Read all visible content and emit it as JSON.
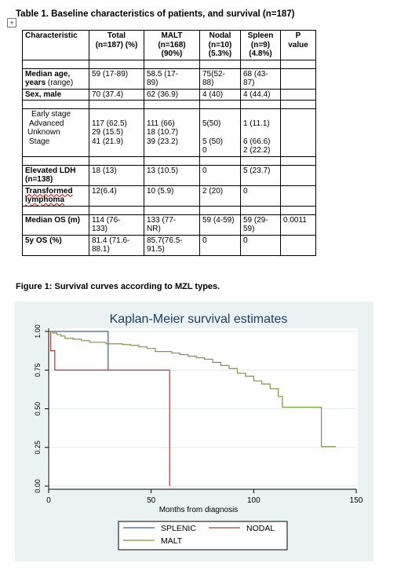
{
  "table": {
    "expand_glyph": "+",
    "title": "Table 1. Baseline characteristics of patients, and survival (n=187)",
    "header": {
      "characteristic": "Characteristic",
      "total": [
        "Total",
        "(n=187) (%)"
      ],
      "malt": [
        "MALT",
        "(n=168)",
        "(90%)"
      ],
      "nodal": [
        "Nodal",
        "(n=10)",
        "(5.3%)"
      ],
      "spleen": [
        "Spleen",
        "(n=9)",
        "(4.8%)"
      ],
      "p": [
        "P",
        "value"
      ]
    },
    "age": {
      "label1": "Median age,",
      "label2": "years",
      "label3": "(range)",
      "total": "59 (17-89)",
      "malt": [
        "58.5 (17-",
        "89)"
      ],
      "nodal": [
        "75(52-",
        "88)"
      ],
      "spleen": [
        "68 (43-",
        "87)"
      ]
    },
    "sex": {
      "label": "Sex, male",
      "total": "70 (37.4)",
      "malt": "62 (36.9)",
      "nodal": "4 (40)",
      "spleen": "4 (44.4)"
    },
    "stage": {
      "label": [
        "Early stage",
        "Advanced",
        "Unknown",
        "Stage"
      ],
      "total": [
        "117 (62.5)",
        "29 (15.5)",
        "41 (21.9)"
      ],
      "malt": [
        "111 (66)",
        "18 (10.7)",
        "39 (23.2)"
      ],
      "nodal": [
        "5(50)",
        "5 (50)",
        "0"
      ],
      "spleen": [
        "1 (11.1)",
        "6 (66.6)",
        "2 (22.2)"
      ]
    },
    "ldh": {
      "label": [
        "Elevated LDH",
        "(n=138)"
      ],
      "total": "18 (13)",
      "malt": "13 (10.5)",
      "nodal": "0",
      "spleen": "5 (23.7)"
    },
    "transformed": {
      "label": [
        "Transformed",
        "lymphoma"
      ],
      "total": "12(6.4)",
      "malt": "10 (5.9)",
      "nodal": "2 (20)",
      "spleen": "0"
    },
    "median_os": {
      "label": "Median OS (m)",
      "total": [
        "114 (76-",
        "133)"
      ],
      "malt": [
        "133 (77-",
        "NR)"
      ],
      "nodal": "59 (4-59)",
      "spleen": [
        "59 (29-",
        "59)"
      ],
      "p": "0.0011"
    },
    "os5": {
      "label": "5y OS (%)",
      "total": [
        "81.4 (71.6-",
        "88.1)"
      ],
      "malt": [
        "85.7(76.5-",
        "91.5)"
      ],
      "nodal": "0",
      "spleen": "0"
    }
  },
  "figure_title": "Figure 1: Survival curves according to MZL types.",
  "chart_data": {
    "type": "line",
    "title": "Kaplan-Meier survival estimates",
    "xlabel": "Months from diagnosis",
    "ylabel": "",
    "xlim": [
      0,
      150
    ],
    "ylim": [
      0,
      1
    ],
    "xticks": [
      0,
      50,
      100,
      150
    ],
    "yticks": [
      "0.00",
      "0.25",
      "0.50",
      "0.75",
      "1.00"
    ],
    "grid": "horizontal",
    "legend_position": "bottom",
    "series": [
      {
        "name": "SPLENIC",
        "color": "#3a5f9f",
        "step": true,
        "x": [
          0,
          29,
          29
        ],
        "y": [
          1.0,
          1.0,
          0.75
        ]
      },
      {
        "name": "NODAL",
        "color": "#b03a3a",
        "step": true,
        "x": [
          0,
          1,
          1,
          3,
          3,
          59,
          59
        ],
        "y": [
          1.0,
          1.0,
          0.875,
          0.875,
          0.75,
          0.75,
          0.0
        ]
      },
      {
        "name": "MALT",
        "color": "#7a9a3a",
        "step": true,
        "x": [
          0,
          2,
          4,
          6,
          8,
          12,
          16,
          20,
          24,
          28,
          32,
          36,
          40,
          44,
          48,
          52,
          56,
          60,
          64,
          68,
          72,
          76,
          80,
          84,
          88,
          92,
          96,
          100,
          104,
          108,
          112,
          114,
          120,
          124,
          128,
          133,
          140
        ],
        "y": [
          1.0,
          0.99,
          0.98,
          0.97,
          0.955,
          0.95,
          0.94,
          0.93,
          0.93,
          0.92,
          0.92,
          0.915,
          0.91,
          0.9,
          0.89,
          0.87,
          0.87,
          0.86,
          0.85,
          0.84,
          0.83,
          0.82,
          0.8,
          0.78,
          0.76,
          0.73,
          0.71,
          0.68,
          0.66,
          0.63,
          0.58,
          0.51,
          0.51,
          0.51,
          0.51,
          0.255,
          0.255
        ]
      }
    ]
  }
}
